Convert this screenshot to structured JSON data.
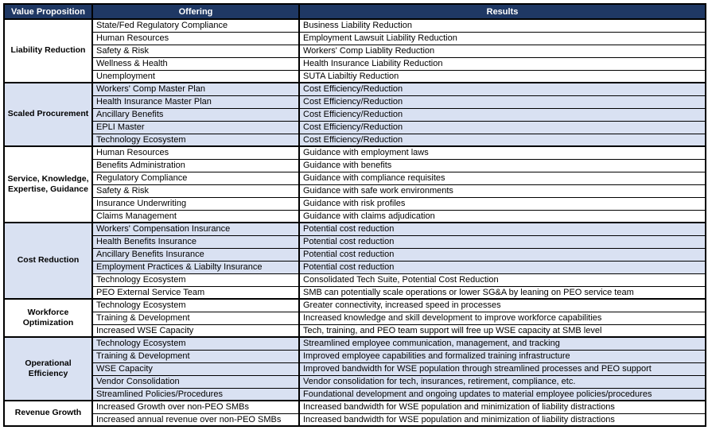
{
  "colors": {
    "header_bg": "#1F3864",
    "header_text": "#FFFFFF",
    "shaded_band": "#D9E1F2",
    "plain_band": "#FFFFFF",
    "border": "#000000"
  },
  "table": {
    "headers": [
      "Value Proposition",
      "Offering",
      "Results"
    ],
    "sections": [
      {
        "value_proposition": "Liability Reduction",
        "vp_shaded": false,
        "rows": [
          {
            "offering": "State/Fed Regulatory Compliance",
            "result": "Business Liability Reduction",
            "shaded": false
          },
          {
            "offering": "Human Resources",
            "result": "Employment Lawsuit Liability Reduction",
            "shaded": false
          },
          {
            "offering": "Safety & Risk",
            "result": "Workers' Comp Liablity Reduction",
            "shaded": false
          },
          {
            "offering": "Wellness & Health",
            "result": "Health Insurance Liability Reduction",
            "shaded": false
          },
          {
            "offering": "Unemployment",
            "result": "SUTA Liabiltiy Reduction",
            "shaded": false
          }
        ]
      },
      {
        "value_proposition": "Scaled Procurement",
        "vp_shaded": true,
        "rows": [
          {
            "offering": "Workers' Comp Master Plan",
            "result": "Cost Efficiency/Reduction",
            "shaded": true
          },
          {
            "offering": "Health Insurance Master Plan",
            "result": "Cost Efficiency/Reduction",
            "shaded": true
          },
          {
            "offering": "Ancillary Benefits",
            "result": "Cost Efficiency/Reduction",
            "shaded": true
          },
          {
            "offering": "EPLI Master",
            "result": "Cost Efficiency/Reduction",
            "shaded": true
          },
          {
            "offering": "Technology Ecosystem",
            "result": "Cost Efficiency/Reduction",
            "shaded": true
          }
        ]
      },
      {
        "value_proposition": "Service, Knowledge, Expertise, Guidance",
        "vp_shaded": false,
        "rows": [
          {
            "offering": "Human Resources",
            "result": "Guidance with employment laws",
            "shaded": false
          },
          {
            "offering": "Benefits Administration",
            "result": "Guidance with benefits",
            "shaded": false
          },
          {
            "offering": "Regulatory Compliance",
            "result": "Guidance with compliance requisites",
            "shaded": false
          },
          {
            "offering": "Safety & Risk",
            "result": "Guidance with safe work environments",
            "shaded": false
          },
          {
            "offering": "Insurance Underwriting",
            "result": "Guidance with risk profiles",
            "shaded": false
          },
          {
            "offering": "Claims Management",
            "result": "Guidance with claims adjudication",
            "shaded": false
          }
        ]
      },
      {
        "value_proposition": "Cost Reduction",
        "vp_shaded": true,
        "rows": [
          {
            "offering": "Workers' Compensation Insurance",
            "result": "Potential cost reduction",
            "shaded": true
          },
          {
            "offering": "Health Benefits Insurance",
            "result": "Potential cost reduction",
            "shaded": true
          },
          {
            "offering": "Ancillary Benefits Insurance",
            "result": "Potential cost reduction",
            "shaded": true
          },
          {
            "offering": "Employment Practices & Liabilty Insurance",
            "result": "Potential cost reduction",
            "shaded": true
          },
          {
            "offering": "Technology Ecosystem",
            "result": "Consolidated Tech Suite, Potential Cost Reduction",
            "shaded": false
          },
          {
            "offering": "PEO External Service Team",
            "result": "SMB can potentially scale operations or lower SG&A by leaning on PEO service team",
            "shaded": false
          }
        ]
      },
      {
        "value_proposition": "Workforce Optimization",
        "vp_shaded": false,
        "rows": [
          {
            "offering": "Technology Ecosystem",
            "result": "Greater connectivity, increased speed in processes",
            "shaded": false
          },
          {
            "offering": "Training & Development",
            "result": "Increased knowledge and skill development to improve workforce capabilities",
            "shaded": false
          },
          {
            "offering": "Increased WSE Capacity",
            "result": "Tech, training, and PEO team support will free up WSE capacity at SMB level",
            "shaded": false
          }
        ]
      },
      {
        "value_proposition": "Operational Efficiency",
        "vp_shaded": true,
        "rows": [
          {
            "offering": "Technology Ecosystem",
            "result": "Streamlined employee communication, management, and tracking",
            "shaded": true
          },
          {
            "offering": "Training & Development",
            "result": "Improved employee capabilities and formalized training infrastructure",
            "shaded": true
          },
          {
            "offering": "WSE Capacity",
            "result": "Improved bandwidth for WSE population through streamlined processes and PEO support",
            "shaded": true
          },
          {
            "offering": "Vendor Consolidation",
            "result": "Vendor consolidation for tech, insurances, retirement, compliance, etc.",
            "shaded": true
          },
          {
            "offering": "Streamlined Policies/Procedures",
            "result": "Foundational development and ongoing updates to material employee policies/procedures",
            "shaded": true
          }
        ]
      },
      {
        "value_proposition": "Revenue Growth",
        "vp_shaded": false,
        "rows": [
          {
            "offering": "Increased Growth over non-PEO SMBs",
            "result": "Increased bandwidth for WSE population and minimization of liability distractions",
            "shaded": false
          },
          {
            "offering": "Increased annual revenue over non-PEO SMBs",
            "result": "Increased bandwidth for WSE population and minimization of liability distractions",
            "shaded": false
          }
        ]
      }
    ]
  }
}
